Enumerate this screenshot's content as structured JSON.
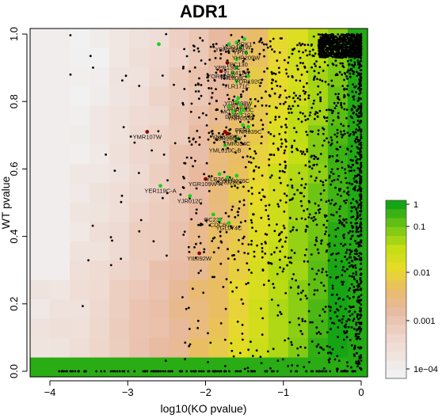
{
  "chart_data": {
    "type": "scatter",
    "title": "ADR1",
    "xlabel": "log10(KO pvalue)",
    "ylabel": "WT pvalue",
    "xlim": [
      -4.2,
      0.1
    ],
    "ylim": [
      -0.02,
      1.02
    ],
    "x_ticks": [
      "−4",
      "−3",
      "−2",
      "−1",
      "0"
    ],
    "y_ticks": [
      "0.0",
      "0.2",
      "0.4",
      "0.6",
      "0.8",
      "1.0"
    ],
    "background": "2D density heatmap (green = high, yellow/orange = mid, pink/white = low)",
    "legend": {
      "position": "right",
      "labels": [
        "1",
        "0.1",
        "0.01",
        "0.001",
        "1e−04"
      ],
      "colors": [
        "#0ea30e",
        "#a4d200",
        "#e3de1a",
        "#e8b070",
        "#f0f0f0"
      ]
    },
    "highlight_colors": {
      "dark_red": "#8b0000",
      "green": "#22cc22",
      "black": "#000000"
    },
    "labeled_points": [
      {
        "label": "YMR107W",
        "x": -2.75,
        "y": 0.71,
        "color": "dark_red"
      },
      {
        "label": "YER119C-A",
        "x": -2.58,
        "y": 0.55,
        "color": "green"
      },
      {
        "label": "YIL092W",
        "x": -2.08,
        "y": 0.35,
        "color": "dark_red"
      },
      {
        "label": "YJR012C",
        "x": -2.2,
        "y": 0.52,
        "color": "green"
      },
      {
        "label": "YGR109W-A",
        "x": -2.0,
        "y": 0.57,
        "color": "dark_red"
      },
      {
        "label": "YLR364W",
        "x": -1.82,
        "y": 0.585,
        "color": "green"
      },
      {
        "label": "YLR028C",
        "x": -1.72,
        "y": 0.575,
        "color": "green"
      },
      {
        "label": "YLR026C",
        "x": -1.6,
        "y": 0.58,
        "color": "green"
      },
      {
        "label": "YML010C-B",
        "x": -1.75,
        "y": 0.67,
        "color": "green"
      },
      {
        "label": "YMR034C",
        "x": -1.6,
        "y": 0.69,
        "color": "green"
      },
      {
        "label": "YNR029C",
        "x": -1.75,
        "y": 0.71,
        "color": "dark_red"
      },
      {
        "label": "YGR260W",
        "x": -1.72,
        "y": 0.705,
        "color": "dark_red"
      },
      {
        "label": "PER1",
        "x": -1.52,
        "y": 0.73,
        "color": "green"
      },
      {
        "label": "YNR039C",
        "x": -1.45,
        "y": 0.725,
        "color": "green"
      },
      {
        "label": "YDR498W",
        "x": -1.58,
        "y": 0.81,
        "color": "green"
      },
      {
        "label": "YGR110W",
        "x": -1.6,
        "y": 0.8,
        "color": "green"
      },
      {
        "label": "YNR080C",
        "x": -1.55,
        "y": 0.79,
        "color": "green"
      },
      {
        "label": "MCT1",
        "x": -1.7,
        "y": 0.785,
        "color": "green"
      },
      {
        "label": "DRT1",
        "x": -1.65,
        "y": 0.77,
        "color": "green"
      },
      {
        "label": "YCT103",
        "x": -1.52,
        "y": 0.775,
        "color": "green"
      },
      {
        "label": "YNR050C",
        "x": -1.55,
        "y": 0.765,
        "color": "green"
      },
      {
        "label": "YLR171C",
        "x": -1.6,
        "y": 0.86,
        "color": "green"
      },
      {
        "label": "YOR109W",
        "x": -1.8,
        "y": 0.89,
        "color": "dark_red"
      },
      {
        "label": "YML008C",
        "x": -1.65,
        "y": 0.885,
        "color": "green"
      },
      {
        "label": "YOR192C",
        "x": -1.45,
        "y": 0.875,
        "color": "green"
      },
      {
        "label": "YLR411W",
        "x": -1.6,
        "y": 0.9,
        "color": "green"
      },
      {
        "label": "YPR136C",
        "x": -1.72,
        "y": 0.915,
        "color": "dark_red"
      },
      {
        "label": "YPC130",
        "x": -1.6,
        "y": 0.925,
        "color": "green"
      },
      {
        "label": "YHR209W",
        "x": -1.48,
        "y": 0.945,
        "color": "green"
      },
      {
        "label": "YPT6",
        "x": -1.55,
        "y": 0.96,
        "color": "green"
      },
      {
        "label": "YOR181W",
        "x": -1.6,
        "y": 0.975,
        "color": "green"
      },
      {
        "label": "PRK1",
        "x": -1.5,
        "y": 0.985,
        "color": "green"
      },
      {
        "label": "YBR139W",
        "x": -1.7,
        "y": 0.97,
        "color": "green"
      },
      {
        "label": "QC237",
        "x": -1.9,
        "y": 0.465,
        "color": "green"
      },
      {
        "label": "CDC60",
        "x": -1.82,
        "y": 0.45,
        "color": "green"
      },
      {
        "label": "YGL074C",
        "x": -1.7,
        "y": 0.44,
        "color": "green"
      }
    ]
  }
}
